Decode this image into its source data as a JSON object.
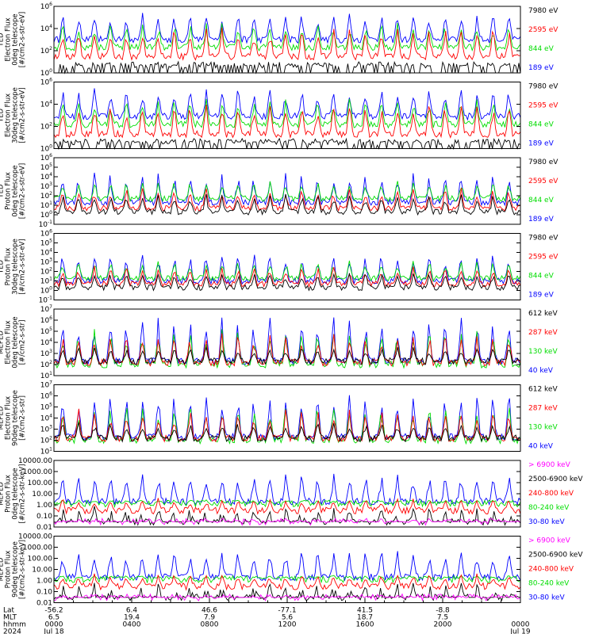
{
  "chart_data": [
    {
      "type": "line",
      "ylabel": [
        "TED",
        "Electron Flux",
        "0deg telescope",
        "[#/cm2-s-str-eV]"
      ],
      "ylog": true,
      "ylim": [
        1,
        1000000
      ],
      "ytick_labels": [
        "10^0",
        "10^2",
        "10^4",
        "10^6"
      ],
      "legend_placement": "right",
      "series": [
        {
          "name": "7980 eV",
          "color": "#000000",
          "baseline": 5,
          "peak": 4,
          "floor_value": 1
        },
        {
          "name": "2595 eV",
          "color": "#ff0000",
          "baseline": 30,
          "peak": 20000
        },
        {
          "name": "844 eV",
          "color": "#00dd00",
          "baseline": 200,
          "peak": 50000
        },
        {
          "name": "189 eV",
          "color": "#0000ff",
          "baseline": 1000,
          "peak": 500000
        }
      ]
    },
    {
      "type": "line",
      "ylabel": [
        "TED",
        "Electron Flux",
        "30deg telescope",
        "[#/cm2-s-str-eV]"
      ],
      "ylog": true,
      "ylim": [
        1,
        1000000
      ],
      "ytick_labels": [
        "10^0",
        "10^2",
        "10^4",
        "10^6"
      ],
      "legend_placement": "right",
      "series": [
        {
          "name": "7980 eV",
          "color": "#000000",
          "baseline": 4,
          "peak": 4,
          "floor_value": 1
        },
        {
          "name": "2595 eV",
          "color": "#ff0000",
          "baseline": 20,
          "peak": 20000
        },
        {
          "name": "844 eV",
          "color": "#00dd00",
          "baseline": 150,
          "peak": 50000
        },
        {
          "name": "189 eV",
          "color": "#0000ff",
          "baseline": 800,
          "peak": 500000
        }
      ]
    },
    {
      "type": "line",
      "ylabel": [
        "TED",
        "Proton Flux",
        "0deg telescope",
        "[#/cm2-s-str-eV]"
      ],
      "ylog": true,
      "ylim": [
        0.1,
        1000000
      ],
      "ytick_labels": [
        "10^-1",
        "10^0",
        "10^1",
        "10^2",
        "10^3",
        "10^4",
        "10^5",
        "10^6"
      ],
      "legend_placement": "right",
      "series": [
        {
          "name": "7980 eV",
          "color": "#000000",
          "baseline": 2,
          "peak": 200
        },
        {
          "name": "2595 eV",
          "color": "#ff0000",
          "baseline": 5,
          "peak": 1000
        },
        {
          "name": "844 eV",
          "color": "#00dd00",
          "baseline": 50,
          "peak": 5000
        },
        {
          "name": "189 eV",
          "color": "#0000ff",
          "baseline": 20,
          "peak": 50000
        }
      ]
    },
    {
      "type": "line",
      "ylabel": [
        "TED",
        "Proton Flux",
        "30deg telescope",
        "[#/cm2-s-str-eV]"
      ],
      "ylog": true,
      "ylim": [
        0.1,
        1000000
      ],
      "ytick_labels": [
        "10^-1",
        "10^0",
        "10^1",
        "10^2",
        "10^3",
        "10^4",
        "10^5",
        "10^6"
      ],
      "legend_placement": "right",
      "series": [
        {
          "name": "7980 eV",
          "color": "#000000",
          "baseline": 2,
          "peak": 100
        },
        {
          "name": "2595 eV",
          "color": "#ff0000",
          "baseline": 5,
          "peak": 500
        },
        {
          "name": "844 eV",
          "color": "#00dd00",
          "baseline": 20,
          "peak": 2000
        },
        {
          "name": "189 eV",
          "color": "#0000ff",
          "baseline": 10,
          "peak": 20000
        }
      ]
    },
    {
      "type": "line",
      "ylabel": [
        "MEPED",
        "Electron Flux",
        "0deg telescope",
        "[#/cm2-s-str]"
      ],
      "ylog": true,
      "ylim": [
        10,
        10000000
      ],
      "ytick_labels": [
        "10^1",
        "10^2",
        "10^3",
        "10^4",
        "10^5",
        "10^6",
        "10^7"
      ],
      "legend_placement": "right",
      "series": [
        {
          "name": "612 keV",
          "color": "#000000",
          "baseline": 200,
          "peak": 5000
        },
        {
          "name": "287 keV",
          "color": "#ff0000",
          "baseline": 150,
          "peak": 100000
        },
        {
          "name": "130 keV",
          "color": "#00dd00",
          "baseline": 100,
          "peak": 300000
        },
        {
          "name": "40 keV",
          "color": "#0000ff",
          "baseline": 200,
          "peak": 3000000
        }
      ]
    },
    {
      "type": "line",
      "ylabel": [
        "MEPED",
        "Electron Flux",
        "90deg telescope",
        "[#/cm2-s-str]"
      ],
      "ylog": true,
      "ylim": [
        10,
        10000000
      ],
      "ytick_labels": [
        "10^1",
        "10^2",
        "10^3",
        "10^4",
        "10^5",
        "10^6",
        "10^7"
      ],
      "legend_placement": "right",
      "series": [
        {
          "name": "612 keV",
          "color": "#000000",
          "baseline": 150,
          "peak": 5000
        },
        {
          "name": "287 keV",
          "color": "#ff0000",
          "baseline": 150,
          "peak": 100000
        },
        {
          "name": "130 keV",
          "color": "#00dd00",
          "baseline": 100,
          "peak": 500000
        },
        {
          "name": "40 keV",
          "color": "#0000ff",
          "baseline": 200,
          "peak": 3000000
        }
      ]
    },
    {
      "type": "line",
      "ylabel": [
        "MEPED",
        "Proton Flux",
        "0deg telescope",
        "[#/cm2-s-str-keV]"
      ],
      "ylog": true,
      "ylim": [
        0.01,
        10000
      ],
      "ytick_labels": [
        "0.01",
        "0.10",
        "1.00",
        "10.00",
        "100.00",
        "1000.00",
        "10000.00"
      ],
      "legend_placement": "right",
      "series": [
        {
          "name": "> 6900 keV",
          "color": "#ff00ff",
          "baseline": 0.03,
          "peak": 0.05,
          "floor_value": 0.03
        },
        {
          "name": "2500-6900 keV",
          "color": "#000000",
          "baseline": 0.03,
          "peak": 1,
          "floor_value": 0.03
        },
        {
          "name": "240-800 keV",
          "color": "#ff0000",
          "baseline": 0.3,
          "peak": 5
        },
        {
          "name": "80-240 keV",
          "color": "#00dd00",
          "baseline": 1.3,
          "peak": 3
        },
        {
          "name": "30-80 keV",
          "color": "#0000ff",
          "baseline": 2,
          "peak": 1000
        }
      ]
    },
    {
      "type": "line",
      "ylabel": [
        "MEPED",
        "Proton Flux",
        "90deg telescope",
        "[#/cm2-s-str-keV]"
      ],
      "ylog": true,
      "ylim": [
        0.01,
        10000
      ],
      "ytick_labels": [
        "0.01",
        "0.10",
        "1.00",
        "10.00",
        "100.00",
        "1000.00",
        "10000.00"
      ],
      "legend_placement": "right",
      "series": [
        {
          "name": "> 6900 keV",
          "color": "#ff00ff",
          "baseline": 0.03,
          "peak": 0.05,
          "floor_value": 0.03
        },
        {
          "name": "2500-6900 keV",
          "color": "#000000",
          "baseline": 0.03,
          "peak": 1,
          "floor_value": 0.03
        },
        {
          "name": "240-800 keV",
          "color": "#ff0000",
          "baseline": 0.3,
          "peak": 5
        },
        {
          "name": "80-240 keV",
          "color": "#00dd00",
          "baseline": 1.3,
          "peak": 3
        },
        {
          "name": "30-80 keV",
          "color": "#0000ff",
          "baseline": 2,
          "peak": 800
        }
      ]
    }
  ],
  "x_axis": {
    "row_labels": [
      "Lat",
      "MLT",
      "hhmm",
      "2024"
    ],
    "range_hours": [
      0,
      24
    ],
    "major_ticks": [
      {
        "hour": 0,
        "lat": "-56.2",
        "mlt": "6.5",
        "hhmm": "0000",
        "date": "Jul 18"
      },
      {
        "hour": 4,
        "lat": "6.4",
        "mlt": "19.4",
        "hhmm": "0400",
        "date": ""
      },
      {
        "hour": 8,
        "lat": "46.6",
        "mlt": "7.9",
        "hhmm": "0800",
        "date": ""
      },
      {
        "hour": 12,
        "lat": "-77.1",
        "mlt": "5.6",
        "hhmm": "1200",
        "date": ""
      },
      {
        "hour": 16,
        "lat": "41.5",
        "mlt": "18.7",
        "hhmm": "1600",
        "date": ""
      },
      {
        "hour": 20,
        "lat": "-8.8",
        "mlt": "7.5",
        "hhmm": "2000",
        "date": ""
      },
      {
        "hour": 24,
        "lat": "",
        "mlt": "",
        "hhmm": "0000",
        "date": "Jul 19"
      }
    ]
  }
}
